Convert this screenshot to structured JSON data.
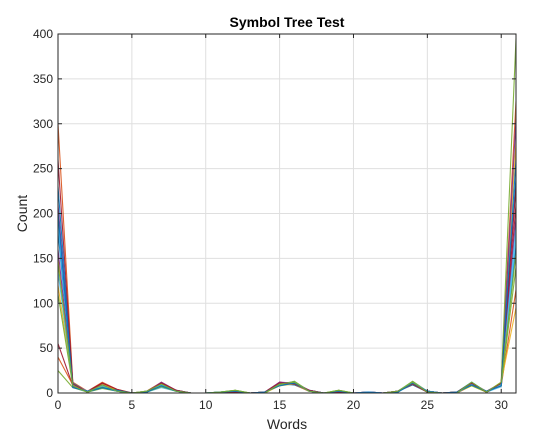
{
  "chart_data": {
    "type": "line",
    "title": "Symbol Tree Test",
    "xlabel": "Words",
    "ylabel": "Count",
    "xlim": [
      0,
      31
    ],
    "ylim": [
      0,
      400
    ],
    "xticks": [
      0,
      5,
      10,
      15,
      20,
      25,
      30
    ],
    "yticks": [
      0,
      50,
      100,
      150,
      200,
      250,
      300,
      350,
      400
    ],
    "grid": true,
    "legend": "none",
    "x": [
      0,
      1,
      2,
      3,
      4,
      5,
      6,
      7,
      8,
      9,
      10,
      11,
      12,
      13,
      14,
      15,
      16,
      17,
      18,
      19,
      20,
      21,
      22,
      23,
      24,
      25,
      26,
      27,
      28,
      29,
      30,
      31
    ],
    "series": [
      {
        "color": "#0072BD",
        "values": [
          180,
          8,
          1,
          8,
          3,
          0,
          1,
          7,
          2,
          0,
          0,
          1,
          2,
          0,
          1,
          10,
          11,
          3,
          0,
          2,
          0,
          1,
          0,
          2,
          10,
          2,
          0,
          1,
          10,
          1,
          8,
          165
        ]
      },
      {
        "color": "#D95319",
        "values": [
          300,
          12,
          2,
          12,
          4,
          0,
          2,
          12,
          3,
          0,
          0,
          0,
          1,
          0,
          1,
          12,
          9,
          2,
          0,
          1,
          0,
          0,
          0,
          2,
          9,
          2,
          0,
          1,
          9,
          2,
          10,
          325
        ]
      },
      {
        "color": "#EDB120",
        "values": [
          150,
          9,
          1,
          7,
          2,
          0,
          1,
          8,
          2,
          0,
          0,
          1,
          1,
          0,
          0,
          9,
          10,
          2,
          0,
          2,
          0,
          0,
          0,
          1,
          11,
          1,
          0,
          0,
          8,
          1,
          12,
          280
        ]
      },
      {
        "color": "#7E2F8E",
        "values": [
          210,
          10,
          2,
          10,
          3,
          0,
          1,
          10,
          2,
          0,
          0,
          0,
          2,
          0,
          1,
          11,
          12,
          3,
          0,
          1,
          0,
          1,
          0,
          2,
          12,
          2,
          0,
          1,
          11,
          2,
          9,
          305
        ]
      },
      {
        "color": "#77AC30",
        "values": [
          25,
          6,
          1,
          5,
          2,
          0,
          1,
          9,
          3,
          0,
          0,
          1,
          3,
          0,
          1,
          8,
          13,
          2,
          0,
          3,
          0,
          0,
          0,
          2,
          13,
          2,
          0,
          1,
          12,
          1,
          11,
          395
        ]
      },
      {
        "color": "#4DBEEE",
        "values": [
          190,
          7,
          1,
          9,
          2,
          0,
          1,
          6,
          2,
          0,
          0,
          1,
          2,
          0,
          1,
          9,
          11,
          2,
          0,
          2,
          0,
          0,
          0,
          1,
          10,
          1,
          0,
          1,
          10,
          1,
          7,
          175
        ]
      },
      {
        "color": "#A2142F",
        "values": [
          55,
          8,
          2,
          11,
          3,
          0,
          2,
          11,
          2,
          0,
          0,
          0,
          1,
          0,
          0,
          12,
          10,
          2,
          0,
          1,
          0,
          1,
          0,
          2,
          11,
          2,
          0,
          0,
          9,
          2,
          10,
          210
        ]
      },
      {
        "color": "#0072BD",
        "values": [
          230,
          11,
          1,
          6,
          2,
          0,
          1,
          9,
          3,
          0,
          0,
          1,
          2,
          0,
          1,
          10,
          9,
          3,
          0,
          2,
          0,
          0,
          0,
          2,
          9,
          1,
          0,
          1,
          12,
          1,
          9,
          240
        ]
      },
      {
        "color": "#D95319",
        "values": [
          40,
          9,
          2,
          8,
          4,
          0,
          1,
          10,
          2,
          0,
          0,
          0,
          1,
          0,
          1,
          11,
          12,
          2,
          0,
          1,
          0,
          1,
          0,
          1,
          12,
          2,
          0,
          1,
          10,
          2,
          8,
          115
        ]
      },
      {
        "color": "#EDB120",
        "values": [
          120,
          10,
          1,
          10,
          3,
          0,
          2,
          8,
          2,
          0,
          0,
          1,
          2,
          0,
          0,
          8,
          10,
          2,
          0,
          2,
          0,
          0,
          0,
          2,
          10,
          1,
          0,
          0,
          11,
          1,
          12,
          95
        ]
      },
      {
        "color": "#7E2F8E",
        "values": [
          160,
          7,
          2,
          9,
          2,
          0,
          1,
          12,
          3,
          0,
          0,
          0,
          1,
          0,
          1,
          12,
          11,
          3,
          0,
          1,
          0,
          1,
          0,
          2,
          11,
          2,
          0,
          1,
          9,
          2,
          11,
          195
        ]
      },
      {
        "color": "#77AC30",
        "values": [
          110,
          8,
          1,
          7,
          3,
          0,
          1,
          7,
          2,
          0,
          0,
          1,
          3,
          0,
          1,
          9,
          13,
          2,
          0,
          3,
          0,
          0,
          0,
          1,
          13,
          1,
          0,
          1,
          8,
          1,
          10,
          140
        ]
      },
      {
        "color": "#4DBEEE",
        "values": [
          135,
          9,
          2,
          8,
          2,
          0,
          2,
          9,
          2,
          0,
          0,
          1,
          2,
          0,
          0,
          10,
          12,
          2,
          0,
          2,
          0,
          1,
          0,
          2,
          12,
          2,
          0,
          0,
          10,
          2,
          9,
          185
        ]
      },
      {
        "color": "#A2142F",
        "values": [
          260,
          10,
          1,
          11,
          4,
          0,
          1,
          11,
          3,
          0,
          0,
          0,
          1,
          0,
          1,
          11,
          10,
          3,
          0,
          1,
          0,
          0,
          0,
          2,
          10,
          1,
          0,
          1,
          11,
          1,
          11,
          230
        ]
      },
      {
        "color": "#0072BD",
        "values": [
          200,
          6,
          2,
          6,
          3,
          0,
          1,
          8,
          2,
          0,
          0,
          1,
          2,
          0,
          1,
          8,
          11,
          2,
          0,
          2,
          0,
          1,
          0,
          1,
          11,
          2,
          0,
          1,
          9,
          2,
          8,
          260
        ]
      },
      {
        "color": "#77AC30",
        "values": [
          145,
          8,
          1,
          9,
          2,
          0,
          2,
          10,
          2,
          0,
          0,
          1,
          3,
          0,
          0,
          10,
          12,
          2,
          0,
          3,
          0,
          0,
          0,
          2,
          12,
          1,
          0,
          0,
          12,
          1,
          12,
          155
        ]
      }
    ]
  }
}
